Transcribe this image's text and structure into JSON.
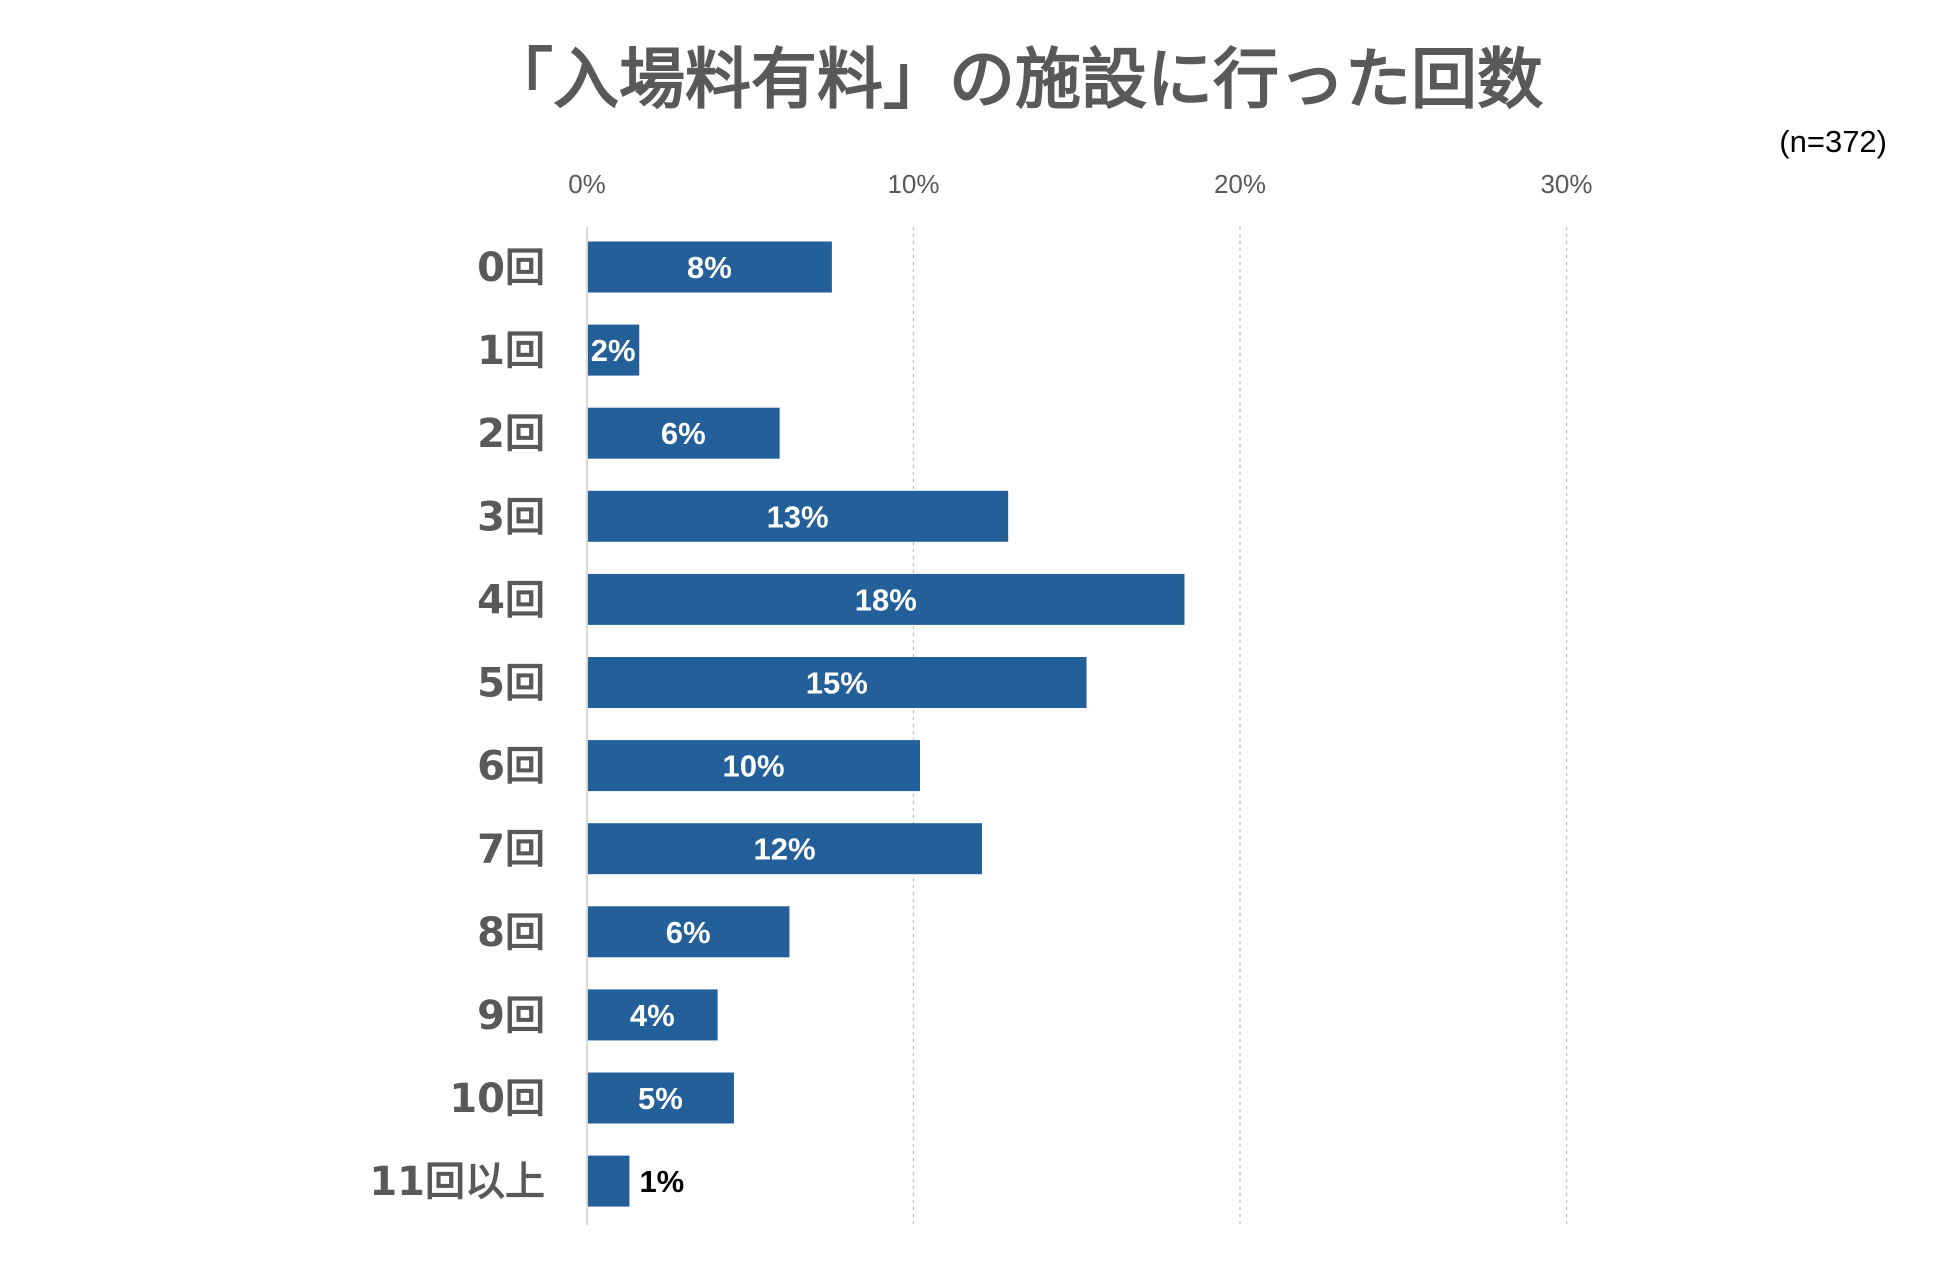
{
  "chart_data": {
    "type": "bar",
    "orientation": "horizontal",
    "title": "「入場料有料」の施設に行った回数",
    "sample_note": "(n=372)",
    "categories": [
      "0回",
      "1回",
      "2回",
      "3回",
      "4回",
      "5回",
      "6回",
      "7回",
      "8回",
      "9回",
      "10回",
      "11回以上"
    ],
    "values": [
      7.5,
      1.6,
      5.9,
      12.9,
      18.3,
      15.3,
      10.2,
      12.1,
      6.2,
      4.0,
      4.5,
      1.3
    ],
    "labels": [
      "8%",
      "2%",
      "6%",
      "13%",
      "18%",
      "15%",
      "10%",
      "12%",
      "6%",
      "4%",
      "5%",
      "1%"
    ],
    "xlim": [
      0,
      30
    ],
    "xticks": [
      0,
      10,
      20,
      30
    ],
    "xtick_labels": [
      "0%",
      "10%",
      "20%",
      "30%"
    ],
    "grid": true,
    "legend": "none",
    "colors": {
      "bar": "#235f99",
      "label_inside": "#ffffff",
      "label_outside": "#000000",
      "grid": "#bfbfbf",
      "axis": "#d9d9d9",
      "text": "#595959"
    }
  }
}
